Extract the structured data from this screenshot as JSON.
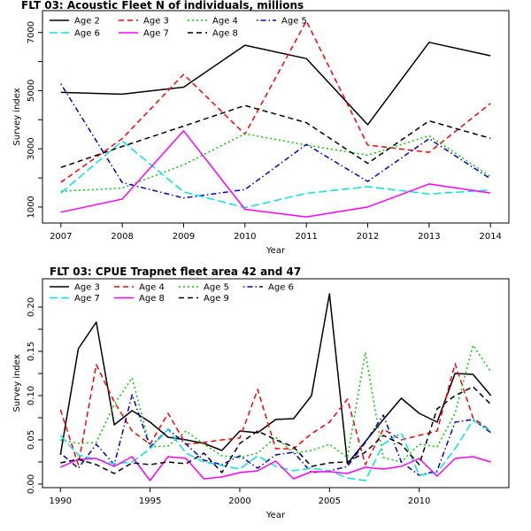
{
  "chart_data": [
    {
      "type": "line",
      "title": "FLT 03: Acoustic Fleet   N of individuals, millions",
      "xlabel": "Year",
      "ylabel": "Survey index",
      "x": [
        2007,
        2008,
        2009,
        2010,
        2011,
        2012,
        2013,
        2014
      ],
      "xticks": [
        2007,
        2008,
        2009,
        2010,
        2011,
        2012,
        2013,
        2014
      ],
      "xlim": [
        2006.7,
        2014.3
      ],
      "yticks": [
        1000,
        3000,
        5000,
        7000
      ],
      "ylim": [
        450,
        7750
      ],
      "grid": false,
      "legend": "top-left",
      "series": [
        {
          "name": "Age 2",
          "color": "#000000",
          "dash": "solid",
          "values": [
            4940,
            4880,
            5120,
            6560,
            6100,
            3830,
            6660,
            6200
          ]
        },
        {
          "name": "Age 3",
          "color": "#ff0000",
          "dash": "dashed",
          "values": [
            1850,
            3350,
            5560,
            3500,
            7390,
            3130,
            2880,
            4560
          ]
        },
        {
          "name": "Age 4",
          "color": "#00cc00",
          "dash": "dotted",
          "values": [
            1540,
            1650,
            2450,
            3520,
            3130,
            2780,
            3450,
            2050
          ]
        },
        {
          "name": "Age 5",
          "color": "#0000cc",
          "dash": "dotdash",
          "values": [
            5230,
            1840,
            1310,
            1600,
            3150,
            1880,
            3350,
            1970
          ]
        },
        {
          "name": "Age 6",
          "color": "#00e5e5",
          "dash": "longdash",
          "values": [
            1480,
            3270,
            1520,
            980,
            1470,
            1700,
            1450,
            1580
          ]
        },
        {
          "name": "Age 7",
          "color": "#ff00ff",
          "dash": "solid",
          "values": [
            820,
            1270,
            3620,
            920,
            660,
            1000,
            1790,
            1480
          ]
        },
        {
          "name": "Age 8",
          "color": "#000000",
          "dash": "dashed",
          "values": [
            2360,
            3080,
            3780,
            4490,
            3900,
            2500,
            3960,
            3360
          ]
        }
      ]
    },
    {
      "type": "line",
      "title": "FLT 03: CPUE Trapnet fleet area 42 and 47",
      "xlabel": "Year",
      "ylabel": "Survey index",
      "x": [
        1990,
        1991,
        1992,
        1993,
        1994,
        1995,
        1996,
        1997,
        1998,
        1999,
        2000,
        2001,
        2002,
        2003,
        2004,
        2005,
        2006,
        2007,
        2008,
        2009,
        2010,
        2011,
        2012,
        2013,
        2014
      ],
      "xticks": [
        1990,
        1995,
        2000,
        2005,
        2010
      ],
      "xlim": [
        1989,
        2015
      ],
      "yticks": [
        0.0,
        0.05,
        0.1,
        0.15,
        0.2
      ],
      "ytick_labels": [
        "0.00",
        "0.05",
        "0.10",
        "0.15",
        "0.20"
      ],
      "ylim": [
        -0.004,
        0.232
      ],
      "grid": false,
      "legend": "top-left",
      "series": [
        {
          "name": "Age 3",
          "color": "#000000",
          "dash": "solid",
          "values": [
            0.033,
            0.153,
            0.183,
            0.067,
            0.083,
            0.07,
            0.053,
            0.05,
            0.046,
            0.038,
            0.06,
            0.058,
            0.073,
            0.074,
            0.1,
            0.215,
            0.023,
            0.048,
            0.073,
            0.097,
            0.08,
            0.07,
            0.125,
            0.124,
            0.1
          ]
        },
        {
          "name": "Age 4",
          "color": "#ff0000",
          "dash": "dashed",
          "values": [
            0.084,
            0.022,
            0.135,
            0.093,
            0.06,
            0.045,
            0.08,
            0.045,
            0.047,
            0.05,
            0.052,
            0.107,
            0.04,
            0.04,
            0.057,
            0.07,
            0.096,
            0.022,
            0.062,
            0.05,
            0.055,
            0.06,
            0.136,
            0.075,
            0.06
          ]
        },
        {
          "name": "Age 5",
          "color": "#00cc00",
          "dash": "dotted",
          "values": [
            0.05,
            0.046,
            0.047,
            0.09,
            0.12,
            0.042,
            0.043,
            0.06,
            0.045,
            0.032,
            0.03,
            0.035,
            0.053,
            0.035,
            0.038,
            0.045,
            0.03,
            0.149,
            0.03,
            0.025,
            0.045,
            0.042,
            0.08,
            0.157,
            0.127
          ]
        },
        {
          "name": "Age 6",
          "color": "#0000cc",
          "dash": "dotdash",
          "values": [
            0.035,
            0.018,
            0.045,
            0.022,
            0.101,
            0.042,
            0.062,
            0.045,
            0.027,
            0.022,
            0.032,
            0.018,
            0.033,
            0.036,
            0.013,
            0.015,
            0.02,
            0.047,
            0.078,
            0.025,
            0.01,
            0.015,
            0.07,
            0.073,
            0.058
          ]
        },
        {
          "name": "Age 7",
          "color": "#00e5e5",
          "dash": "longdash",
          "values": [
            0.055,
            0.033,
            0.028,
            0.023,
            0.025,
            0.04,
            0.062,
            0.035,
            0.025,
            0.021,
            0.017,
            0.032,
            0.02,
            0.015,
            0.018,
            0.015,
            0.007,
            0.004,
            0.045,
            0.058,
            0.01,
            0.013,
            0.04,
            0.072,
            0.06
          ]
        },
        {
          "name": "Age 8",
          "color": "#ff00ff",
          "dash": "solid",
          "values": [
            0.019,
            0.028,
            0.029,
            0.02,
            0.031,
            0.004,
            0.031,
            0.029,
            0.006,
            0.008,
            0.013,
            0.015,
            0.026,
            0.006,
            0.014,
            0.014,
            0.012,
            0.019,
            0.017,
            0.02,
            0.029,
            0.009,
            0.029,
            0.031,
            0.025
          ]
        },
        {
          "name": "Age 9",
          "color": "#000000",
          "dash": "dashed",
          "values": [
            0.024,
            0.028,
            0.022,
            0.012,
            0.024,
            0.022,
            0.025,
            0.023,
            0.035,
            0.013,
            0.046,
            0.06,
            0.05,
            0.042,
            0.02,
            0.024,
            0.025,
            0.036,
            0.055,
            0.045,
            0.022,
            0.085,
            0.1,
            0.11,
            0.09
          ]
        }
      ]
    }
  ]
}
